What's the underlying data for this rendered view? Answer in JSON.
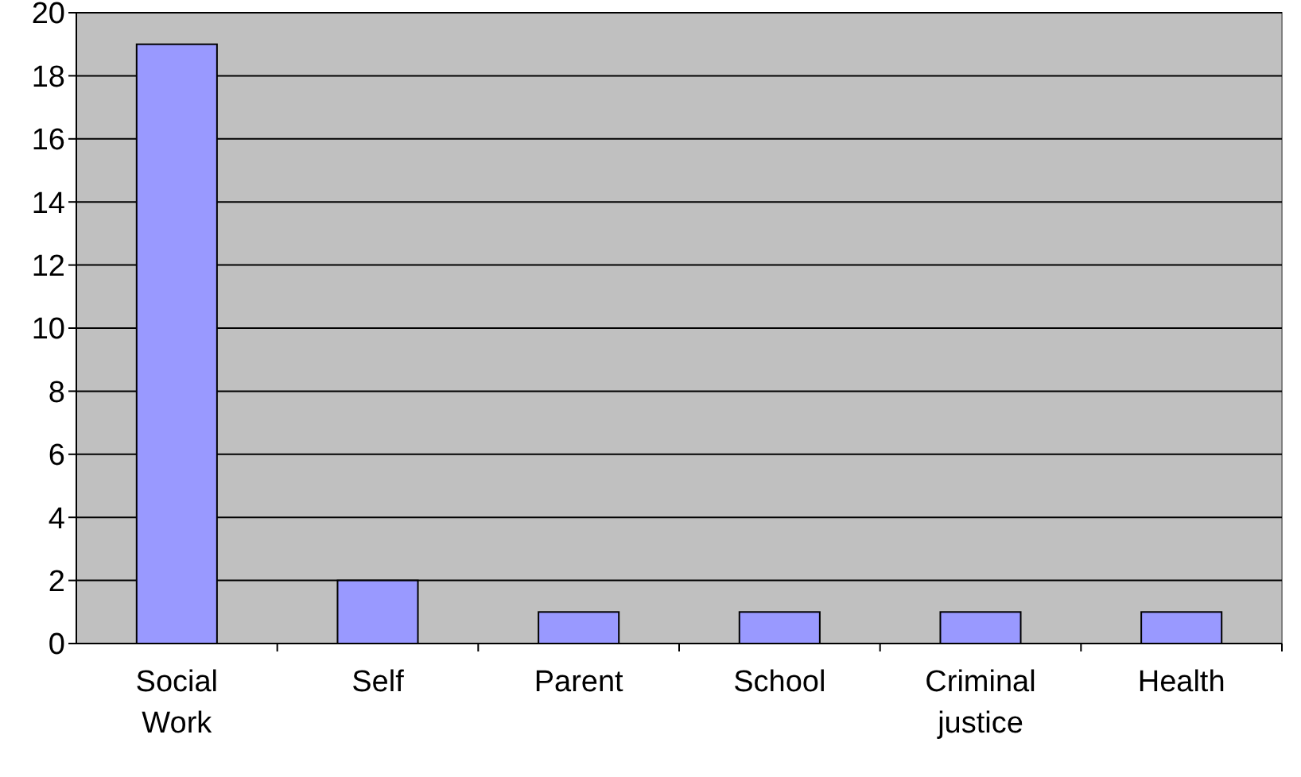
{
  "chart_data": {
    "type": "bar",
    "categories": [
      "Social Work",
      "Self",
      "Parent",
      "School",
      "Criminal justice",
      "Health"
    ],
    "values": [
      19,
      2,
      1,
      1,
      1,
      1
    ],
    "color": "#9999ff",
    "ylim": [
      0,
      20
    ],
    "yticks": [
      0,
      2,
      4,
      6,
      8,
      10,
      12,
      14,
      16,
      18,
      20
    ],
    "grid": "y"
  }
}
